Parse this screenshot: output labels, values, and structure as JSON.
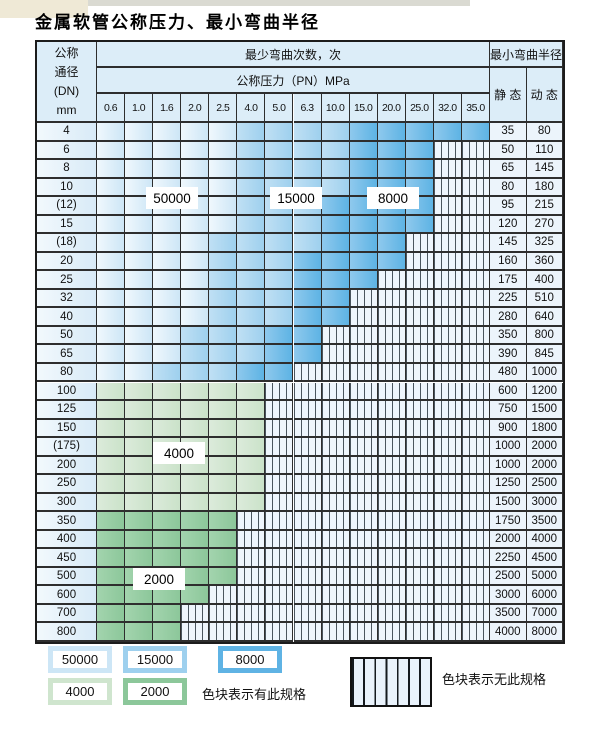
{
  "title": "金属软管公称压力、最小弯曲半径",
  "table": {
    "header": {
      "dn_lines": [
        "公称",
        "通径",
        "(DN)",
        "mm"
      ],
      "cycles_label": "最少弯曲次数，次",
      "pressure_label": "公称压力（PN）MPa",
      "pressure_values": [
        "0.6",
        "1.0",
        "1.6",
        "2.0",
        "2.5",
        "4.0",
        "5.0",
        "6.3",
        "10.0",
        "15.0",
        "20.0",
        "25.0",
        "32.0",
        "35.0"
      ],
      "radius_label": "最小弯曲半径",
      "static_label": "静 态",
      "dynamic_label": "动 态"
    },
    "rows": [
      {
        "dn": "4",
        "band": "blue",
        "z15": 5,
        "z8": 9,
        "last": 13,
        "static": "35",
        "dynamic": "80"
      },
      {
        "dn": "6",
        "band": "blue",
        "z15": 5,
        "z8": 9,
        "last": 11,
        "static": "50",
        "dynamic": "110"
      },
      {
        "dn": "8",
        "band": "blue",
        "z15": 5,
        "z8": 9,
        "last": 11,
        "static": "65",
        "dynamic": "145"
      },
      {
        "dn": "10",
        "band": "blue",
        "z15": 5,
        "z8": 9,
        "last": 11,
        "static": "80",
        "dynamic": "180"
      },
      {
        "dn": "(12)",
        "band": "blue",
        "z15": 5,
        "z8": 8,
        "last": 11,
        "static": "95",
        "dynamic": "215"
      },
      {
        "dn": "15",
        "band": "blue",
        "z15": 5,
        "z8": 8,
        "last": 11,
        "static": "120",
        "dynamic": "270"
      },
      {
        "dn": "(18)",
        "band": "blue",
        "z15": 4,
        "z8": 8,
        "last": 10,
        "static": "145",
        "dynamic": "325"
      },
      {
        "dn": "20",
        "band": "blue",
        "z15": 4,
        "z8": 7,
        "last": 10,
        "static": "160",
        "dynamic": "360"
      },
      {
        "dn": "25",
        "band": "blue",
        "z15": 4,
        "z8": 7,
        "last": 9,
        "static": "175",
        "dynamic": "400"
      },
      {
        "dn": "32",
        "band": "blue",
        "z15": 4,
        "z8": 7,
        "last": 8,
        "static": "225",
        "dynamic": "510"
      },
      {
        "dn": "40",
        "band": "blue",
        "z15": 4,
        "z8": 7,
        "last": 8,
        "static": "280",
        "dynamic": "640"
      },
      {
        "dn": "50",
        "band": "blue",
        "z15": 3,
        "z8": 6,
        "last": 7,
        "static": "350",
        "dynamic": "800"
      },
      {
        "dn": "65",
        "band": "blue",
        "z15": 3,
        "z8": 6,
        "last": 7,
        "static": "390",
        "dynamic": "845"
      },
      {
        "dn": "80",
        "band": "blue",
        "z15": 2,
        "z8": 5,
        "last": 6,
        "static": "480",
        "dynamic": "1000"
      },
      {
        "dn": "100",
        "band": "green-4000",
        "last": 5,
        "static": "600",
        "dynamic": "1200"
      },
      {
        "dn": "125",
        "band": "green-4000",
        "last": 5,
        "static": "750",
        "dynamic": "1500"
      },
      {
        "dn": "150",
        "band": "green-4000",
        "last": 5,
        "static": "900",
        "dynamic": "1800"
      },
      {
        "dn": "(175)",
        "band": "green-4000",
        "last": 5,
        "static": "1000",
        "dynamic": "2000"
      },
      {
        "dn": "200",
        "band": "green-4000",
        "last": 5,
        "static": "1000",
        "dynamic": "2000"
      },
      {
        "dn": "250",
        "band": "green-4000",
        "last": 5,
        "static": "1250",
        "dynamic": "2500"
      },
      {
        "dn": "300",
        "band": "green-4000",
        "last": 5,
        "static": "1500",
        "dynamic": "3000"
      },
      {
        "dn": "350",
        "band": "green-2000",
        "last": 4,
        "static": "1750",
        "dynamic": "3500"
      },
      {
        "dn": "400",
        "band": "green-2000",
        "last": 4,
        "static": "2000",
        "dynamic": "4000"
      },
      {
        "dn": "450",
        "band": "green-2000",
        "last": 4,
        "static": "2250",
        "dynamic": "4500"
      },
      {
        "dn": "500",
        "band": "green-2000",
        "last": 4,
        "static": "2500",
        "dynamic": "5000"
      },
      {
        "dn": "600",
        "band": "green-2000",
        "last": 3,
        "static": "3000",
        "dynamic": "6000"
      },
      {
        "dn": "700",
        "band": "green-2000",
        "last": 2,
        "static": "3500",
        "dynamic": "7000"
      },
      {
        "dn": "800",
        "band": "green-2000",
        "last": 2,
        "static": "4000",
        "dynamic": "8000"
      }
    ],
    "overlay_labels": [
      "50000",
      "15000",
      "8000",
      "4000",
      "2000"
    ]
  },
  "legend": {
    "swatches": [
      {
        "label": "50000",
        "color": "#cde6f6"
      },
      {
        "label": "15000",
        "color": "#9ed0ee"
      },
      {
        "label": "8000",
        "color": "#5fb3e4"
      },
      {
        "label": "4000",
        "color": "#cfe5ce"
      },
      {
        "label": "2000",
        "color": "#8cc79a"
      }
    ],
    "has_spec_text": "色块表示有此规格",
    "no_spec_text": "色块表示无此规格"
  },
  "colors": {
    "blue_lightest": "#d9ecf9",
    "blue_light": "#a8d4f0",
    "blue_medium": "#66b8e8",
    "green_light": "#cfe5ce",
    "green_medium": "#8cc79a",
    "hatch_line": "#4a555e",
    "grid_line": "#2e2e2e"
  }
}
